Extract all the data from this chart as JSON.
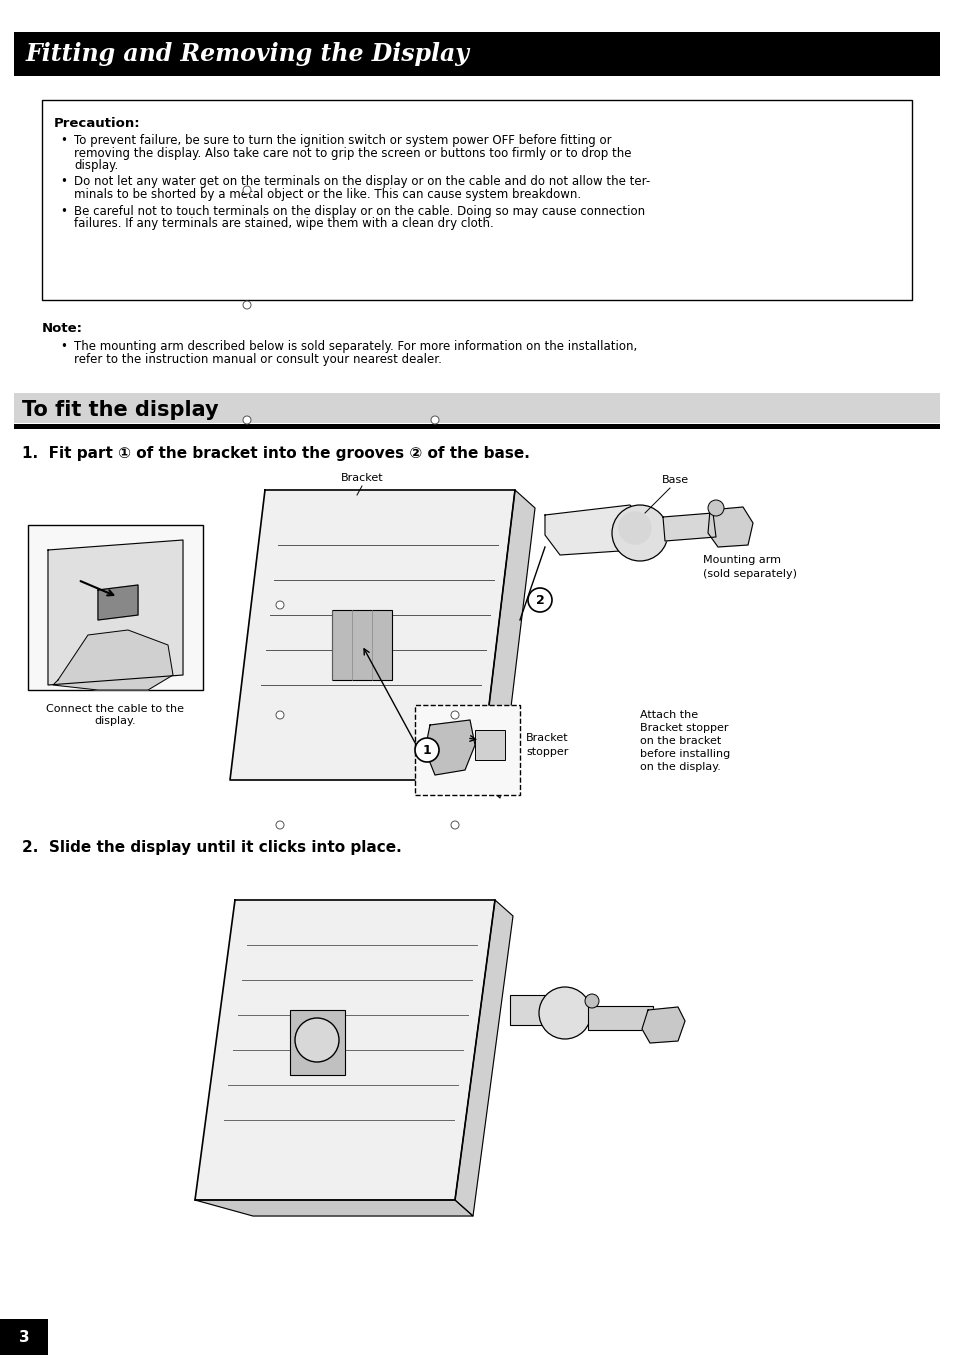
{
  "page_bg": "#ffffff",
  "header_bg": "#000000",
  "header_text": "Fitting and Removing the Display",
  "header_text_color": "#ffffff",
  "header_font_size": 17,
  "section_bg": "#d4d4d4",
  "section_line_color": "#000000",
  "section_title": "To fit the display",
  "section_title_fontsize": 15,
  "precaution_title": "Precaution:",
  "precaution_b1_line1": "To prevent failure, be sure to turn the ignition switch or system power OFF before fitting or",
  "precaution_b1_line2": "removing the display. Also take care not to grip the screen or buttons too firmly or to drop the",
  "precaution_b1_line3": "display.",
  "precaution_b2_line1": "Do not let any water get on the terminals on the display or on the cable and do not allow the ter-",
  "precaution_b2_line2": "minals to be shorted by a metal object or the like. This can cause system breakdown.",
  "precaution_b3_line1": "Be careful not to touch terminals on the display or on the cable. Doing so may cause connection",
  "precaution_b3_line2": "failures. If any terminals are stained, wipe them with a clean dry cloth.",
  "note_title": "Note:",
  "note_b1_line1": "The mounting arm described below is sold separately. For more information on the installation,",
  "note_b1_line2": "refer to the instruction manual or consult your nearest dealer.",
  "step1_text": "1.  Fit part ① of the bracket into the grooves ② of the base.",
  "step2_text": "2.  Slide the display until it clicks into place.",
  "page_number": "3",
  "label_bracket": "Bracket",
  "label_base": "Base",
  "label_mounting_arm": "Mounting arm",
  "label_mounting_arm2": "(sold separately)",
  "label_connect_line1": "Connect the cable to the",
  "label_connect_line2": "display.",
  "label_bracket_stopper_line1": "Bracket",
  "label_bracket_stopper_line2": "stopper",
  "label_attach_line1": "Attach the",
  "label_attach_line2": "Bracket stopper",
  "label_attach_line3": "on the bracket",
  "label_attach_line4": "before installing",
  "label_attach_line5": "on the display.",
  "body_fontsize": 8.5,
  "bold_fontsize": 9.5
}
